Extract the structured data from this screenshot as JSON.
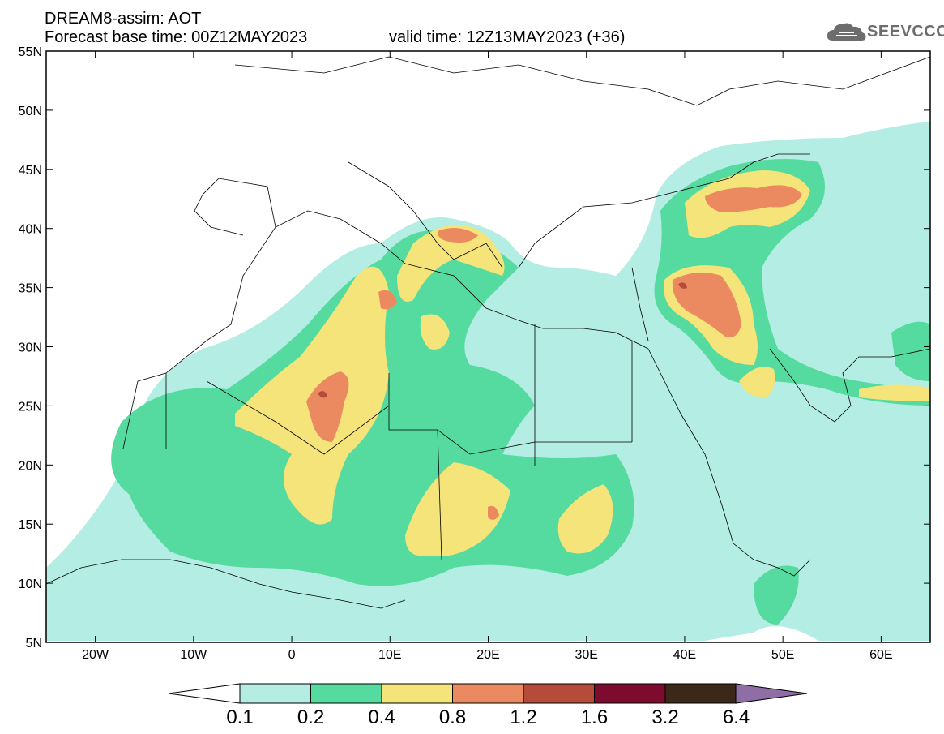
{
  "header": {
    "line1": "DREAM8-assim: AOT",
    "line2": "Forecast base time: 00Z12MAY2023",
    "valid": "valid time: 12Z13MAY2023 (+36)"
  },
  "logo": {
    "text": "SEEVCCC",
    "icon": "cloud-icon",
    "color": "#6d6d6d"
  },
  "axes": {
    "lat_labels": [
      "55N",
      "50N",
      "45N",
      "40N",
      "35N",
      "30N",
      "25N",
      "20N",
      "15N",
      "10N",
      "5N"
    ],
    "lon_labels": [
      "20W",
      "10W",
      "0",
      "10E",
      "20E",
      "30E",
      "40E",
      "50E",
      "60E"
    ],
    "lat_range": [
      5,
      55
    ],
    "lon_range": [
      -25,
      65
    ]
  },
  "colorbar": {
    "labels": [
      "0.1",
      "0.2",
      "0.4",
      "0.8",
      "1.2",
      "1.6",
      "3.2",
      "6.4"
    ],
    "colors": [
      "#b3ede3",
      "#55dba0",
      "#f5e47a",
      "#eb8a60",
      "#b54c3a",
      "#7d0b2d",
      "#3a2818",
      "#8f6ea6"
    ]
  }
}
